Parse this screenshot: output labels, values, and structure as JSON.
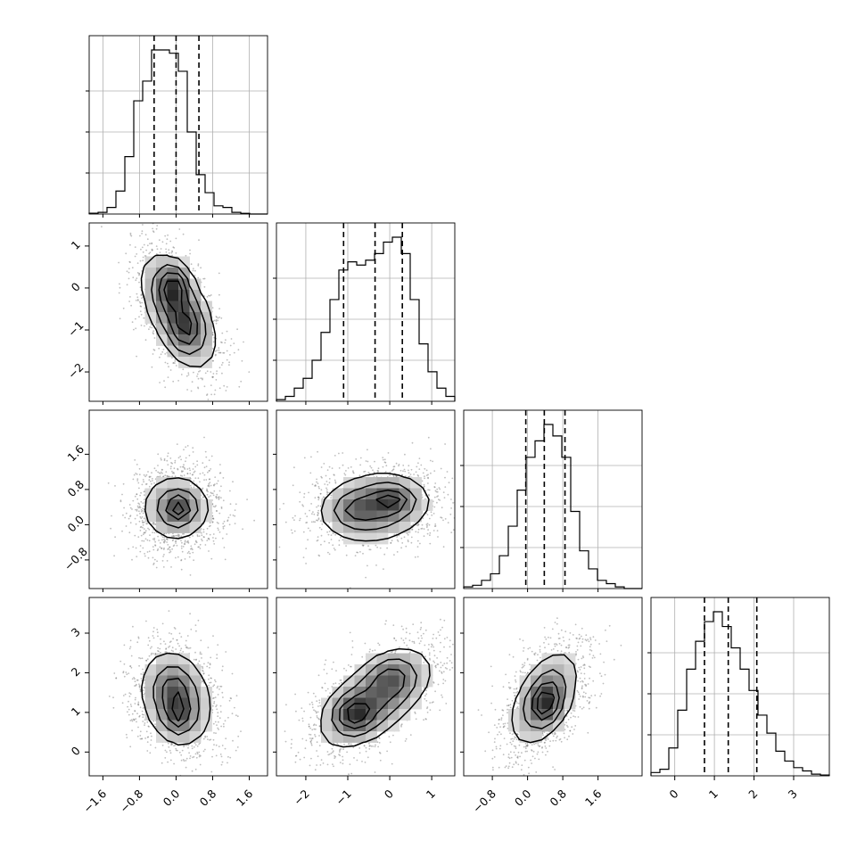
{
  "chart_data": {
    "type": "corner",
    "title": "",
    "parameters": 4,
    "grid": true,
    "colors": {
      "line": "#000000",
      "points": "#6f6f6f",
      "grid": "#b0b0b0",
      "density_max": "#000000"
    },
    "quantile_lines": [
      0.16,
      0.5,
      0.84
    ],
    "axes": [
      {
        "index": 0,
        "range": [
          -1.9,
          2.0
        ],
        "ticks": [
          {
            "value": -1.6,
            "label": "−1.6"
          },
          {
            "value": -0.8,
            "label": "−0.8"
          },
          {
            "value": 0.0,
            "label": "0.0"
          },
          {
            "value": 0.8,
            "label": "0.8"
          },
          {
            "value": 1.6,
            "label": "1.6"
          }
        ],
        "quantiles": [
          -0.48,
          0.0,
          0.5
        ],
        "hist": [
          0.005,
          0.01,
          0.04,
          0.14,
          0.35,
          0.69,
          0.81,
          1.0,
          1.0,
          0.98,
          0.87,
          0.5,
          0.24,
          0.13,
          0.05,
          0.04,
          0.01,
          0.004,
          0.0,
          0.0
        ]
      },
      {
        "index": 1,
        "range": [
          -2.7,
          1.55
        ],
        "ticks": [
          {
            "value": -2,
            "label": "−2"
          },
          {
            "value": -1,
            "label": "−1"
          },
          {
            "value": 0,
            "label": "0"
          },
          {
            "value": 1,
            "label": "1"
          }
        ],
        "quantiles": [
          -1.1,
          -0.35,
          0.3
        ],
        "hist": [
          0.01,
          0.03,
          0.08,
          0.14,
          0.25,
          0.42,
          0.62,
          0.8,
          0.85,
          0.83,
          0.86,
          0.9,
          0.97,
          1.0,
          0.9,
          0.62,
          0.35,
          0.18,
          0.08,
          0.03
        ]
      },
      {
        "index": 2,
        "range": [
          -1.45,
          2.6
        ],
        "ticks": [
          {
            "value": -0.8,
            "label": "−0.8"
          },
          {
            "value": 0.0,
            "label": "0.0"
          },
          {
            "value": 0.8,
            "label": "0.8"
          },
          {
            "value": 1.6,
            "label": "1.6"
          }
        ],
        "quantiles": [
          -0.04,
          0.38,
          0.85
        ],
        "hist": [
          0.01,
          0.02,
          0.05,
          0.09,
          0.2,
          0.38,
          0.6,
          0.8,
          0.9,
          1.0,
          0.93,
          0.8,
          0.47,
          0.23,
          0.12,
          0.05,
          0.03,
          0.01,
          0.0,
          0.0
        ]
      },
      {
        "index": 3,
        "range": [
          -0.6,
          3.9
        ],
        "ticks": [
          {
            "value": 0,
            "label": "0"
          },
          {
            "value": 1,
            "label": "1"
          },
          {
            "value": 2,
            "label": "2"
          },
          {
            "value": 3,
            "label": "3"
          }
        ],
        "quantiles": [
          0.75,
          1.35,
          2.07
        ],
        "hist": [
          0.02,
          0.04,
          0.17,
          0.4,
          0.65,
          0.82,
          0.94,
          1.0,
          0.91,
          0.78,
          0.65,
          0.52,
          0.37,
          0.26,
          0.15,
          0.09,
          0.05,
          0.03,
          0.01,
          0.005
        ]
      }
    ],
    "pairs": [
      {
        "x": 0,
        "y": 1,
        "mean": [
          0.05,
          -0.55
        ],
        "std": [
          0.42,
          0.7
        ],
        "rho": -0.55,
        "mode": [
          -0.05,
          0.05
        ],
        "secondary": [
          0.2,
          -1.0
        ]
      },
      {
        "x": 0,
        "y": 2,
        "mean": [
          0.0,
          0.38
        ],
        "std": [
          0.42,
          0.42
        ],
        "rho": 0.0,
        "mode": [
          0.05,
          0.38
        ],
        "secondary": [
          0.08,
          0.4
        ]
      },
      {
        "x": 1,
        "y": 2,
        "mean": [
          -0.35,
          0.4
        ],
        "std": [
          0.7,
          0.42
        ],
        "rho": 0.15,
        "mode": [
          0.05,
          0.55
        ],
        "secondary": [
          -0.8,
          0.33
        ]
      },
      {
        "x": 0,
        "y": 3,
        "mean": [
          0.0,
          1.35
        ],
        "std": [
          0.42,
          0.65
        ],
        "rho": -0.2,
        "mode": [
          0.05,
          0.95
        ],
        "secondary": [
          -0.05,
          1.6
        ]
      },
      {
        "x": 1,
        "y": 3,
        "mean": [
          -0.35,
          1.35
        ],
        "std": [
          0.7,
          0.65
        ],
        "rho": 0.6,
        "mode": [
          -0.85,
          0.95
        ],
        "secondary": [
          0.05,
          1.9
        ]
      },
      {
        "x": 2,
        "y": 3,
        "mean": [
          0.38,
          1.35
        ],
        "std": [
          0.42,
          0.65
        ],
        "rho": 0.5,
        "mode": [
          0.38,
          1.15
        ],
        "secondary": [
          0.5,
          1.4
        ]
      }
    ]
  }
}
